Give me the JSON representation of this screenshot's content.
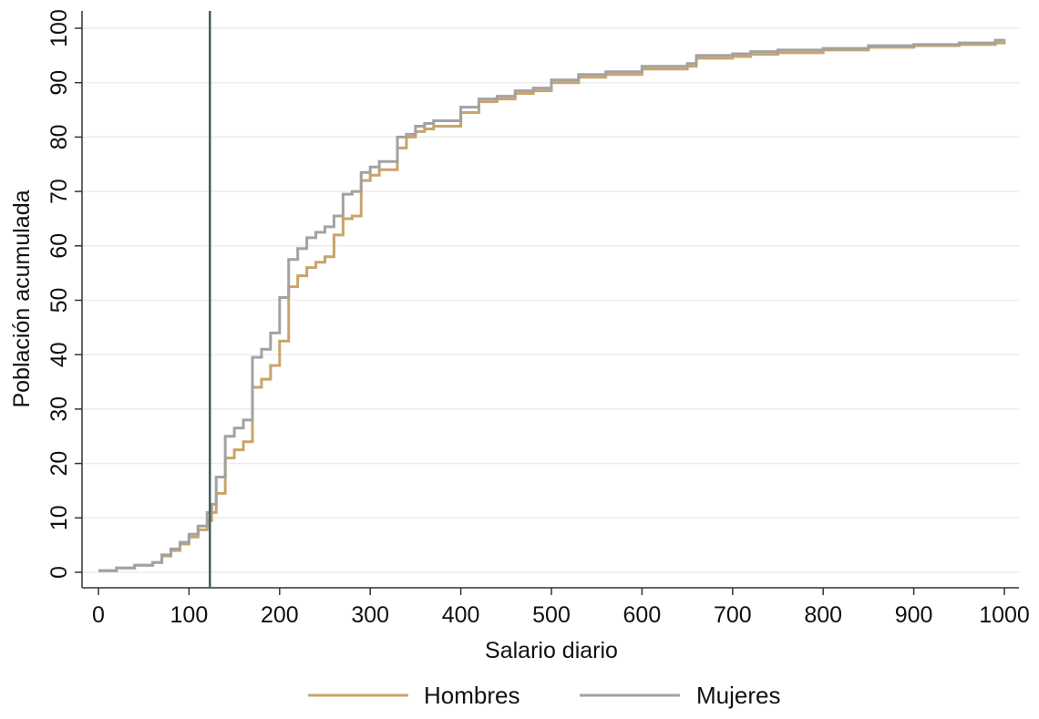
{
  "chart_data": {
    "type": "line",
    "step": true,
    "xlabel": "Salario diario",
    "ylabel": "Población acumulada",
    "xlim": [
      0,
      1000
    ],
    "ylim": [
      0,
      100
    ],
    "xticks": [
      0,
      100,
      200,
      300,
      400,
      500,
      600,
      700,
      800,
      900,
      1000
    ],
    "yticks": [
      0,
      10,
      20,
      30,
      40,
      50,
      60,
      70,
      80,
      90,
      100
    ],
    "grid": "horizontal",
    "legend_position": "bottom",
    "reference_line": {
      "x": 123,
      "color": "#3e5f5b"
    },
    "series": [
      {
        "name": "Hombres",
        "color": "#c9a46a",
        "x": [
          0,
          20,
          40,
          60,
          70,
          80,
          90,
          100,
          110,
          120,
          125,
          130,
          140,
          150,
          160,
          170,
          180,
          190,
          200,
          210,
          220,
          230,
          240,
          250,
          260,
          270,
          280,
          290,
          300,
          310,
          330,
          340,
          350,
          360,
          370,
          400,
          420,
          440,
          460,
          480,
          500,
          530,
          560,
          600,
          650,
          660,
          700,
          720,
          750,
          800,
          850,
          900,
          950,
          990,
          1000
        ],
        "values": [
          0.3,
          0.8,
          1.3,
          1.8,
          3.0,
          4.0,
          5.2,
          6.5,
          7.8,
          9.5,
          11.0,
          14.5,
          21.0,
          22.5,
          24.0,
          34.0,
          35.5,
          38.0,
          42.5,
          52.5,
          54.5,
          56.0,
          57.0,
          58.0,
          62.0,
          65.0,
          65.5,
          72.0,
          73.0,
          74.0,
          78.0,
          80.0,
          81.0,
          81.5,
          82.0,
          84.5,
          86.5,
          87.0,
          88.0,
          88.5,
          90.0,
          91.0,
          91.5,
          92.5,
          93.0,
          94.5,
          94.8,
          95.2,
          95.5,
          96.0,
          96.5,
          96.8,
          97.0,
          97.3,
          97.5
        ]
      },
      {
        "name": "Mujeres",
        "color": "#a2a2a2",
        "x": [
          0,
          20,
          40,
          60,
          70,
          80,
          90,
          100,
          110,
          120,
          125,
          130,
          140,
          150,
          160,
          170,
          180,
          190,
          200,
          210,
          220,
          230,
          240,
          250,
          260,
          270,
          280,
          290,
          300,
          310,
          330,
          340,
          350,
          360,
          370,
          400,
          420,
          440,
          460,
          480,
          500,
          530,
          560,
          600,
          650,
          660,
          700,
          720,
          750,
          800,
          850,
          900,
          950,
          990,
          1000
        ],
        "values": [
          0.3,
          0.8,
          1.3,
          1.8,
          3.2,
          4.3,
          5.5,
          7.0,
          8.5,
          11.0,
          12.5,
          17.5,
          25.0,
          26.5,
          28.0,
          39.5,
          41.0,
          44.0,
          50.5,
          57.5,
          59.5,
          61.5,
          62.5,
          63.5,
          65.5,
          69.5,
          70.0,
          73.5,
          74.5,
          75.5,
          80.0,
          80.5,
          82.0,
          82.5,
          83.0,
          85.5,
          87.0,
          87.5,
          88.5,
          89.0,
          90.5,
          91.5,
          92.0,
          93.0,
          93.5,
          95.0,
          95.3,
          95.7,
          96.0,
          96.3,
          96.8,
          97.0,
          97.3,
          97.8,
          98.0
        ]
      }
    ]
  }
}
